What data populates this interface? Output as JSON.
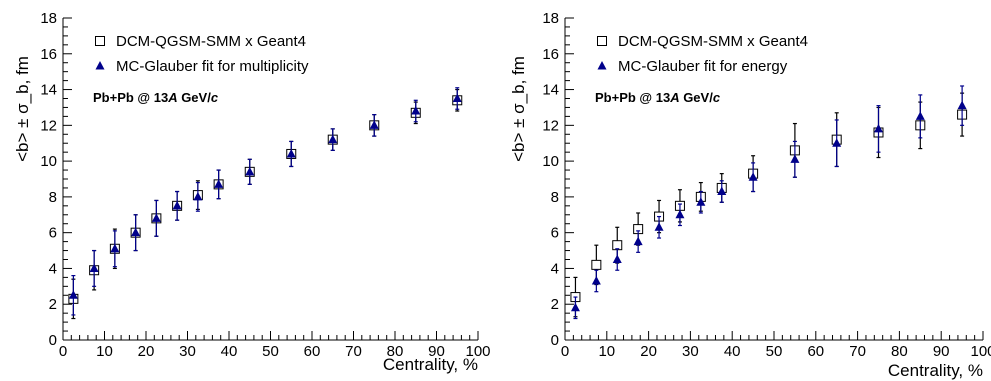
{
  "chart_data": [
    {
      "type": "scatter",
      "xlabel": "Centrality, %",
      "ylabel": "<b> ± σ_b, fm",
      "xlim": [
        0,
        100
      ],
      "ylim": [
        0,
        18
      ],
      "x_ticks": [
        "0",
        "10",
        "20",
        "30",
        "40",
        "50",
        "60",
        "70",
        "80",
        "90",
        "100"
      ],
      "y_ticks": [
        "0",
        "2",
        "4",
        "6",
        "8",
        "10",
        "12",
        "14",
        "16",
        "18"
      ],
      "annotation": {
        "prefix": "Pb+Pb @ 13",
        "italic_a": "A",
        "middle": " GeV/",
        "italic_c": "c"
      },
      "series": [
        {
          "name": "DCM-QGSM-SMM x Geant4",
          "marker": "open-square",
          "color": "#000000",
          "x": [
            2.5,
            7.5,
            12.5,
            17.5,
            22.5,
            27.5,
            32.5,
            37.5,
            45,
            55,
            65,
            75,
            85,
            95
          ],
          "y": [
            2.3,
            3.9,
            5.1,
            6.0,
            6.8,
            7.5,
            8.1,
            8.7,
            9.4,
            10.4,
            11.2,
            12.0,
            12.7,
            13.4
          ],
          "err": [
            1.1,
            1.1,
            1.1,
            1.0,
            1.0,
            0.8,
            0.8,
            0.8,
            0.7,
            0.7,
            0.6,
            0.6,
            0.6,
            0.6
          ]
        },
        {
          "name": "MC-Glauber fit for multiplicity",
          "marker": "filled-triangle",
          "color": "#00008b",
          "x": [
            2.5,
            7.5,
            12.5,
            17.5,
            22.5,
            27.5,
            32.5,
            37.5,
            45,
            55,
            65,
            75,
            85,
            95
          ],
          "y": [
            2.5,
            4.0,
            5.1,
            6.0,
            6.8,
            7.5,
            8.0,
            8.7,
            9.4,
            10.4,
            11.2,
            12.0,
            12.8,
            13.5
          ],
          "err": [
            1.1,
            1.0,
            1.0,
            1.0,
            1.0,
            0.8,
            0.8,
            0.8,
            0.7,
            0.7,
            0.6,
            0.6,
            0.6,
            0.6
          ]
        }
      ]
    },
    {
      "type": "scatter",
      "xlabel": "Centrality, %",
      "ylabel": "<b> ± σ_b, fm",
      "xlim": [
        0,
        100
      ],
      "ylim": [
        0,
        18
      ],
      "x_ticks": [
        "0",
        "10",
        "20",
        "30",
        "40",
        "50",
        "60",
        "70",
        "80",
        "90",
        "100"
      ],
      "y_ticks": [
        "0",
        "2",
        "4",
        "6",
        "8",
        "10",
        "12",
        "14",
        "16",
        "18"
      ],
      "annotation": {
        "prefix": "Pb+Pb @ 13",
        "italic_a": "A",
        "middle": " GeV/",
        "italic_c": "c"
      },
      "series": [
        {
          "name": "DCM-QGSM-SMM x Geant4",
          "marker": "open-square",
          "color": "#000000",
          "x": [
            2.5,
            7.5,
            12.5,
            17.5,
            22.5,
            27.5,
            32.5,
            37.5,
            45,
            55,
            65,
            75,
            85,
            95
          ],
          "y": [
            2.4,
            4.2,
            5.3,
            6.2,
            6.9,
            7.5,
            8.0,
            8.5,
            9.3,
            10.6,
            11.2,
            11.6,
            12.0,
            12.6
          ],
          "err": [
            1.1,
            1.1,
            1.0,
            0.9,
            0.9,
            0.9,
            0.8,
            0.8,
            1.0,
            1.5,
            1.5,
            1.4,
            1.3,
            1.2
          ]
        },
        {
          "name": "MC-Glauber fit for energy",
          "marker": "filled-triangle",
          "color": "#00008b",
          "x": [
            2.5,
            7.5,
            12.5,
            17.5,
            22.5,
            27.5,
            32.5,
            37.5,
            45,
            55,
            65,
            75,
            85,
            95
          ],
          "y": [
            1.8,
            3.3,
            4.5,
            5.5,
            6.3,
            7.0,
            7.7,
            8.3,
            9.1,
            10.1,
            11.0,
            11.8,
            12.5,
            13.1
          ],
          "err": [
            0.6,
            0.6,
            0.6,
            0.6,
            0.6,
            0.6,
            0.6,
            0.6,
            0.8,
            1.0,
            1.3,
            1.3,
            1.2,
            1.1
          ]
        }
      ]
    }
  ]
}
